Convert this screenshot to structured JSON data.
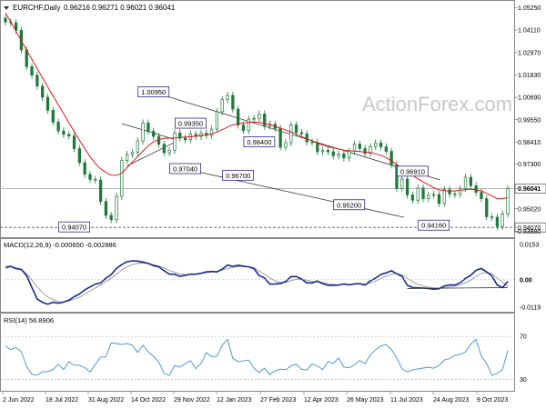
{
  "header": {
    "title": "EURCHF,Daily",
    "ohlc": "0.96216 0.96271 0.96021 0.96041"
  },
  "watermark": "ActionForex.com",
  "colors": {
    "candle": "#1f7a3a",
    "ma": "#e0191e",
    "channel": "#333333",
    "macd_line": "#1a2a8a",
    "macd_signal": "#888888",
    "rsi": "#3b8fd6",
    "price_tag_bg": "#ffffff",
    "grid": "#cccccc"
  },
  "chart_data": [
    {
      "type": "candlestick",
      "panel": "price",
      "title": "EURCHF,Daily",
      "ylim": [
        0.9357,
        1.0555
      ],
      "y_ticks": [
        "1.05250",
        "1.04110",
        "1.02970",
        "1.01830",
        "1.00690",
        "0.99550",
        "0.98410",
        "0.97300",
        "0.96041",
        "0.95020",
        "0.94070",
        "0.93880"
      ],
      "current_price": "0.96041",
      "support_level": "0.94070",
      "close_series": [
        1.0452,
        1.0448,
        1.041,
        1.031,
        1.0225,
        1.0182,
        1.0126,
        1.0069,
        1.0003,
        0.9943,
        0.9898,
        0.988,
        0.9872,
        0.9808,
        0.9737,
        0.9677,
        0.9651,
        0.9648,
        0.9539,
        0.9468,
        0.9446,
        0.9565,
        0.9748,
        0.9778,
        0.9789,
        0.9847,
        0.9938,
        0.9896,
        0.987,
        0.983,
        0.9787,
        0.9799,
        0.9888,
        0.9861,
        0.9853,
        0.9881,
        0.987,
        0.9886,
        0.9875,
        0.9907,
        0.9996,
        1.0057,
        1.0079,
        1.0009,
        0.9928,
        0.99,
        0.9958,
        0.9962,
        0.9984,
        0.9922,
        0.9932,
        0.9911,
        0.9815,
        0.9838,
        0.9928,
        0.989,
        0.9883,
        0.9842,
        0.9839,
        0.9792,
        0.9799,
        0.9792,
        0.9772,
        0.9781,
        0.976,
        0.9795,
        0.9831,
        0.9808,
        0.9784,
        0.9818,
        0.9837,
        0.9817,
        0.9794,
        0.9725,
        0.9605,
        0.9653,
        0.9572,
        0.9545,
        0.9607,
        0.9553,
        0.9571,
        0.9574,
        0.9529,
        0.9599,
        0.9577,
        0.9575,
        0.9605,
        0.9662,
        0.9619,
        0.9585,
        0.9553,
        0.9461,
        0.9459,
        0.9412,
        0.9476,
        0.9604
      ],
      "moving_average": [
        1.0498,
        1.0453,
        1.0405,
        1.0358,
        1.031,
        1.0262,
        1.0215,
        1.0169,
        1.0122,
        1.0076,
        1.0031,
        0.9986,
        0.994,
        0.9896,
        0.9851,
        0.9807,
        0.9767,
        0.9732,
        0.9705,
        0.9687,
        0.9673,
        0.9672,
        0.9683,
        0.9711,
        0.974,
        0.9767,
        0.9796,
        0.9822,
        0.9842,
        0.9854,
        0.986,
        0.9861,
        0.9862,
        0.9864,
        0.9867,
        0.9868,
        0.9871,
        0.9875,
        0.9878,
        0.9883,
        0.9892,
        0.9904,
        0.9918,
        0.9929,
        0.9934,
        0.9938,
        0.9942,
        0.9943,
        0.9941,
        0.9936,
        0.993,
        0.9922,
        0.9912,
        0.9902,
        0.9893,
        0.9881,
        0.9869,
        0.9858,
        0.9847,
        0.9836,
        0.9826,
        0.9818,
        0.9812,
        0.9806,
        0.98,
        0.9797,
        0.9795,
        0.9793,
        0.979,
        0.9787,
        0.9781,
        0.9774,
        0.9762,
        0.9745,
        0.9726,
        0.9706,
        0.9689,
        0.9671,
        0.9654,
        0.9638,
        0.9624,
        0.9609,
        0.9598,
        0.9594,
        0.9592,
        0.9593,
        0.9596,
        0.9599,
        0.9601,
        0.9599,
        0.9593,
        0.958,
        0.9568,
        0.9553,
        0.9553,
        0.9558
      ],
      "annotations": [
        {
          "label": "1.00950",
          "value": 1.0095,
          "at_index": 28
        },
        {
          "label": "0.99350",
          "value": 0.9935,
          "at_index": 35
        },
        {
          "label": "0.97040",
          "value": 0.9704,
          "at_index": 34
        },
        {
          "label": "0.98400",
          "value": 0.984,
          "at_index": 48
        },
        {
          "label": "0.96700",
          "value": 0.967,
          "at_index": 44
        },
        {
          "label": "0.96910",
          "value": 0.9691,
          "at_index": 77
        },
        {
          "label": "0.95200",
          "value": 0.952,
          "at_index": 65
        },
        {
          "label": "0.94160",
          "value": 0.9416,
          "at_index": 81
        },
        {
          "label": "0.94070",
          "value": 0.9407,
          "at_index": 13
        }
      ],
      "x_tick_labels": [
        "2 Jun 2022",
        "18 Jul 2022",
        "31 Aug 2022",
        "14 Oct 2022",
        "29 Nov 2022",
        "12 Jan 2023",
        "27 Feb 2023",
        "12 Apr 2023",
        "26 May 2023",
        "11 Jul 2023",
        "24 Aug 2023",
        "9 Oct 2023"
      ],
      "grid": false
    },
    {
      "type": "line",
      "panel": "macd",
      "title": "MACD(12,26,9) -0.000650 -0.002886",
      "ylim": [
        -0.0135,
        0.0165
      ],
      "y_ticks": [
        "0.0153",
        "0.00",
        "-0.0119"
      ],
      "series": [
        {
          "values": [
            0.0052,
            0.0058,
            0.0048,
            0.0045,
            0.0018,
            -0.0034,
            -0.0084,
            -0.0098,
            -0.0106,
            -0.0098,
            -0.0102,
            -0.0097,
            -0.0089,
            -0.0074,
            -0.0062,
            -0.0044,
            -0.0031,
            -0.0019,
            -0.0014,
            0.0007,
            0.0022,
            0.0049,
            0.0066,
            0.0078,
            0.0082,
            0.0081,
            0.0077,
            0.0071,
            0.0061,
            0.0056,
            0.0039,
            0.0024,
            0.0024,
            0.0015,
            0.0019,
            0.0024,
            0.0024,
            0.0028,
            0.0034,
            0.0036,
            0.0034,
            0.0046,
            0.0064,
            0.0058,
            0.0063,
            0.0059,
            0.0056,
            0.0048,
            0.0018,
            0.0008,
            -0.0019,
            -0.0018,
            -0.0016,
            -0.0008,
            0.0014,
            0.0014,
            0.0003,
            -0.0014,
            -0.0014,
            -0.0006,
            -0.0017,
            -0.0024,
            -0.0024,
            -0.0023,
            -0.0018,
            -0.0022,
            -0.0018,
            -0.0017,
            -0.0023,
            -0.0005,
            0.0007,
            0.0023,
            0.003,
            0.0039,
            0.0026,
            0.0015,
            -0.0024,
            -0.0034,
            -0.0035,
            -0.0036,
            -0.0038,
            -0.0041,
            -0.0039,
            -0.0027,
            -0.0022,
            -0.0023,
            -0.0013,
            0.0006,
            0.0019,
            0.0041,
            0.0049,
            0.0034,
            0.0017,
            -0.0023,
            -0.0034,
            -0.0007
          ]
        },
        {
          "values": [
            0.0062,
            0.0059,
            0.0052,
            0.0045,
            0.0026,
            -0.0002,
            -0.0032,
            -0.0056,
            -0.0075,
            -0.0086,
            -0.0095,
            -0.0096,
            -0.0092,
            -0.0085,
            -0.0076,
            -0.0063,
            -0.0049,
            -0.0036,
            -0.0023,
            -0.0008,
            0.0007,
            0.0025,
            0.0042,
            0.0056,
            0.0066,
            0.0071,
            0.0073,
            0.0071,
            0.0066,
            0.006,
            0.0051,
            0.004,
            0.0033,
            0.0026,
            0.0022,
            0.0023,
            0.0025,
            0.0028,
            0.0031,
            0.0033,
            0.0037,
            0.0042,
            0.0049,
            0.0054,
            0.0057,
            0.0058,
            0.0057,
            0.0052,
            0.0038,
            0.0024,
            0.0007,
            -0.0005,
            -0.0012,
            -0.0011,
            -0.0004,
            0.0002,
            0.0003,
            -0.0002,
            -0.0008,
            -0.0009,
            -0.0012,
            -0.0017,
            -0.002,
            -0.0022,
            -0.0021,
            -0.002,
            -0.0019,
            -0.0018,
            -0.0019,
            -0.0014,
            -0.0006,
            0.0006,
            0.0016,
            0.0025,
            0.0027,
            0.0022,
            0.0006,
            -0.0008,
            -0.002,
            -0.0027,
            -0.0032,
            -0.0036,
            -0.0037,
            -0.0034,
            -0.003,
            -0.0028,
            -0.0023,
            -0.0013,
            -0.0001,
            0.0014,
            0.0028,
            0.0031,
            0.0027,
            0.0007,
            -0.0011,
            -0.0028
          ]
        }
      ],
      "trendline": {
        "from": [
          76,
          -0.0038
        ],
        "to": [
          95,
          -0.0034
        ]
      }
    },
    {
      "type": "line",
      "panel": "rsi",
      "title": "RSI(14) 56.8906",
      "ylim": [
        20,
        82
      ],
      "y_ticks": [
        "70",
        "30"
      ],
      "levels": [
        70,
        30
      ],
      "series": [
        {
          "values": [
            61.1,
            57.6,
            59.6,
            55.7,
            42.0,
            34.5,
            33.8,
            37.0,
            37.1,
            38.9,
            44.1,
            39.0,
            46.3,
            43.2,
            43.0,
            40.7,
            36.7,
            43.9,
            50.7,
            50.8,
            63.9,
            63.3,
            62.4,
            63.5,
            61.7,
            55.1,
            61.7,
            55.5,
            51.4,
            46.0,
            35.5,
            33.6,
            42.6,
            41.3,
            44.5,
            47.4,
            39.8,
            44.7,
            54.7,
            51.1,
            51.5,
            61.7,
            67.3,
            49.4,
            46.4,
            47.1,
            47.9,
            40.3,
            36.2,
            40.4,
            34.3,
            37.9,
            39.4,
            38.9,
            42.3,
            44.2,
            39.1,
            38.6,
            44.3,
            42.4,
            38.9,
            46.5,
            44.9,
            49.8,
            41.3,
            40.8,
            43.3,
            47.4,
            44.5,
            52.7,
            57.5,
            61.2,
            62.4,
            57.8,
            50.0,
            39.6,
            36.7,
            38.8,
            39.6,
            40.4,
            41.2,
            40.2,
            42.9,
            48.0,
            49.2,
            52.4,
            53.4,
            55.4,
            62.8,
            67.2,
            51.5,
            44.6,
            33.5,
            35.4,
            38.9,
            56.9
          ]
        }
      ]
    }
  ]
}
